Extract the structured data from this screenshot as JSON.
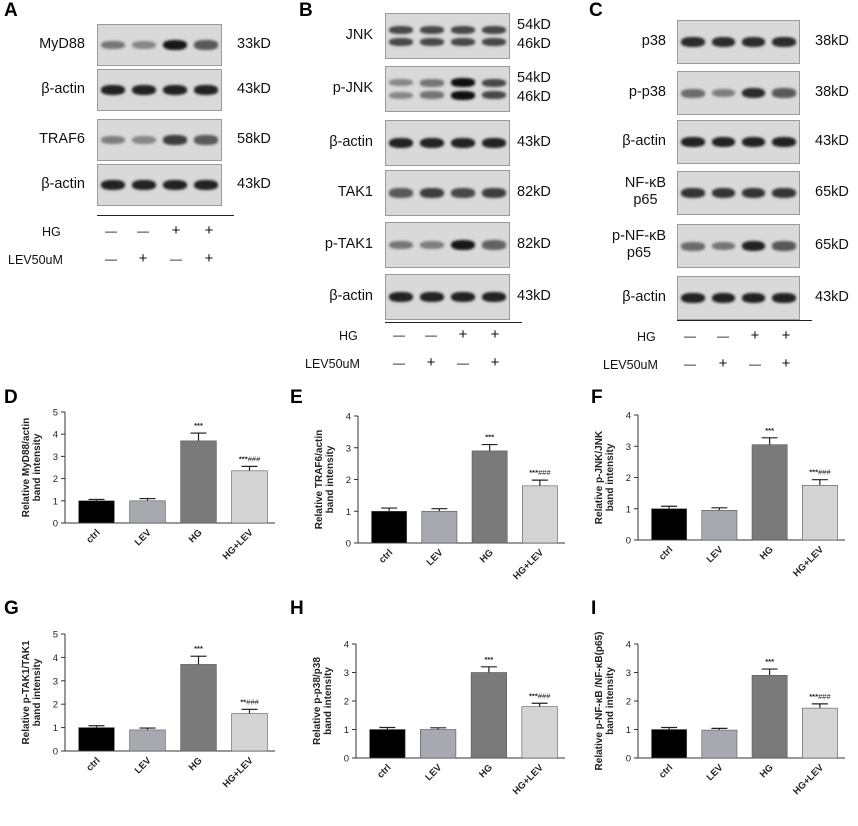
{
  "panel_A": {
    "letter": "A",
    "rows": [
      {
        "protein": "MyD88",
        "size": "33kD",
        "intensities": [
          0.45,
          0.35,
          0.95,
          0.6
        ]
      },
      {
        "protein": "β-actin",
        "size": "43kD",
        "intensities": [
          0.9,
          0.9,
          0.9,
          0.9
        ]
      },
      {
        "protein": "TRAF6",
        "size": "58kD",
        "intensities": [
          0.4,
          0.35,
          0.75,
          0.6
        ]
      },
      {
        "protein": "β-actin",
        "size": "43kD",
        "intensities": [
          0.9,
          0.9,
          0.9,
          0.9
        ]
      }
    ],
    "conditions": [
      {
        "label": "HG",
        "marks": [
          "—",
          "—",
          "+",
          "+"
        ]
      },
      {
        "label": "LEV50uM",
        "marks": [
          "—",
          "+",
          "—",
          "+"
        ]
      }
    ]
  },
  "panel_B": {
    "letter": "B",
    "rows": [
      {
        "protein": "JNK",
        "size": "54kD\n46kD",
        "intensities": [
          0.7,
          0.7,
          0.7,
          0.7
        ],
        "double": true
      },
      {
        "protein": "p-JNK",
        "size": "54kD\n46kD",
        "intensities": [
          0.35,
          0.45,
          1.0,
          0.7
        ],
        "double": true
      },
      {
        "protein": "β-actin",
        "size": "43kD",
        "intensities": [
          0.9,
          0.9,
          0.9,
          0.9
        ]
      },
      {
        "protein": "TAK1",
        "size": "82kD",
        "intensities": [
          0.6,
          0.75,
          0.7,
          0.75
        ]
      },
      {
        "protein": "p-TAK1",
        "size": "82kD",
        "intensities": [
          0.45,
          0.4,
          0.95,
          0.55
        ]
      },
      {
        "protein": "β-actin",
        "size": "43kD",
        "intensities": [
          0.9,
          0.9,
          0.9,
          0.9
        ]
      }
    ],
    "conditions": [
      {
        "label": "HG",
        "marks": [
          "—",
          "—",
          "+",
          "+"
        ]
      },
      {
        "label": "LEV50uM",
        "marks": [
          "—",
          "+",
          "—",
          "+"
        ]
      }
    ]
  },
  "panel_C": {
    "letter": "C",
    "rows": [
      {
        "protein": "p38",
        "size": "38kD",
        "intensities": [
          0.85,
          0.85,
          0.85,
          0.85
        ]
      },
      {
        "protein": "p-p38",
        "size": "38kD",
        "intensities": [
          0.5,
          0.4,
          0.85,
          0.6
        ]
      },
      {
        "protein": "β-actin",
        "size": "43kD",
        "intensities": [
          0.9,
          0.9,
          0.9,
          0.9
        ]
      },
      {
        "protein": "NF-κB\np65",
        "size": "65kD",
        "intensities": [
          0.8,
          0.8,
          0.8,
          0.8
        ]
      },
      {
        "protein": "p-NF-κB\np65",
        "size": "65kD",
        "intensities": [
          0.5,
          0.45,
          0.9,
          0.6
        ]
      },
      {
        "protein": "β-actin",
        "size": "43kD",
        "intensities": [
          0.9,
          0.9,
          0.9,
          0.9
        ]
      }
    ],
    "conditions": [
      {
        "label": "HG",
        "marks": [
          "—",
          "—",
          "+",
          "+"
        ]
      },
      {
        "label": "LEV50uM",
        "marks": [
          "—",
          "+",
          "—",
          "+"
        ]
      }
    ]
  },
  "chart_data": [
    {
      "letter": "D",
      "type": "bar",
      "categories": [
        "ctrl",
        "LEV",
        "HG",
        "HG+LEV"
      ],
      "values": [
        1.0,
        1.0,
        3.7,
        2.35
      ],
      "errors": [
        0.06,
        0.1,
        0.35,
        0.2
      ],
      "annotations": [
        "",
        "",
        "***",
        "***###"
      ],
      "ylabel": "Relative MyD88/actin\nband intensity",
      "ylim": [
        0,
        5
      ],
      "yticks": [
        0,
        1,
        2,
        3,
        4,
        5
      ]
    },
    {
      "letter": "E",
      "type": "bar",
      "categories": [
        "ctrl",
        "LEV",
        "HG",
        "HG+LEV"
      ],
      "values": [
        1.0,
        1.0,
        2.9,
        1.8
      ],
      "errors": [
        0.1,
        0.08,
        0.2,
        0.18
      ],
      "annotations": [
        "",
        "",
        "***",
        "***###"
      ],
      "ylabel": "Relative TRAF6/actin\nband intensity",
      "ylim": [
        0,
        4
      ],
      "yticks": [
        0,
        1,
        2,
        3,
        4
      ]
    },
    {
      "letter": "F",
      "type": "bar",
      "categories": [
        "ctrl",
        "LEV",
        "HG",
        "HG+LEV"
      ],
      "values": [
        1.0,
        0.95,
        3.05,
        1.75
      ],
      "errors": [
        0.08,
        0.08,
        0.22,
        0.18
      ],
      "annotations": [
        "",
        "",
        "***",
        "***###"
      ],
      "ylabel": "Relative p-JNK/JNK\nband intensity",
      "ylim": [
        0,
        4
      ],
      "yticks": [
        0,
        1,
        2,
        3,
        4
      ]
    },
    {
      "letter": "G",
      "type": "bar",
      "categories": [
        "ctrl",
        "LEV",
        "HG",
        "HG+LEV"
      ],
      "values": [
        1.0,
        0.9,
        3.7,
        1.6
      ],
      "errors": [
        0.08,
        0.08,
        0.35,
        0.18
      ],
      "annotations": [
        "",
        "",
        "***",
        "**###"
      ],
      "ylabel": "Relative p-TAK1/TAK1\nband intensity",
      "ylim": [
        0,
        5
      ],
      "yticks": [
        0,
        1,
        2,
        3,
        4,
        5
      ]
    },
    {
      "letter": "H",
      "type": "bar",
      "categories": [
        "ctrl",
        "LEV",
        "HG",
        "HG+LEV"
      ],
      "values": [
        1.0,
        1.0,
        3.0,
        1.8
      ],
      "errors": [
        0.07,
        0.06,
        0.2,
        0.12
      ],
      "annotations": [
        "",
        "",
        "***",
        "***###"
      ],
      "ylabel": "Relative p-p38/p38\nband intensity",
      "ylim": [
        0,
        4
      ],
      "yticks": [
        0,
        1,
        2,
        3,
        4
      ]
    },
    {
      "letter": "I",
      "type": "bar",
      "categories": [
        "ctrl",
        "LEV",
        "HG",
        "HG+LEV"
      ],
      "values": [
        1.0,
        0.98,
        2.9,
        1.75
      ],
      "errors": [
        0.07,
        0.06,
        0.22,
        0.15
      ],
      "annotations": [
        "",
        "",
        "***",
        "***###"
      ],
      "ylabel": "Relative p-NF-κB /NF-κB(p65)\nband intensity",
      "ylim": [
        0,
        4
      ],
      "yticks": [
        0,
        1,
        2,
        3,
        4
      ]
    }
  ],
  "colors": {
    "ctrl": "#000000",
    "LEV": "#a8a8b0",
    "HG": "#7a7a7a",
    "HG+LEV": "#d4d4d4"
  }
}
